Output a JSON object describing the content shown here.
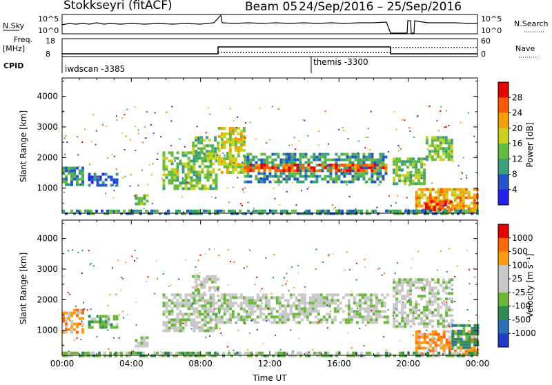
{
  "header": {
    "station": "Stokkseyri (fitACF)",
    "beam": "Beam 05",
    "dates": "24/Sep/2016 – 25/Sep/2016"
  },
  "summary": {
    "nsky_label": "N.Sky",
    "nsearch_label": "N.Search",
    "noise_ticks": [
      "10^5",
      "10^0"
    ],
    "freq_label": "Freq.",
    "freq_unit": "[MHz]",
    "freq_ticks": [
      "18",
      "8"
    ],
    "nave_label": "Nave",
    "nave_ticks": [
      "60",
      "0"
    ],
    "cpid_label": "CPID",
    "cpid_entries": [
      {
        "name": "iwdscan -3385",
        "start_hour": 0
      },
      {
        "name": "themis -3300",
        "start_hour": 14.4
      }
    ]
  },
  "chart_data": [
    {
      "type": "heatmap",
      "panel": "power",
      "ylabel": "Slant Range [km]",
      "xlim_hours": [
        0,
        24
      ],
      "ylim_km": [
        180,
        4600
      ],
      "y_ticks": [
        1000,
        2000,
        3000,
        4000
      ],
      "colorbar_label": "Power [dB]",
      "colorbar_ticks": [
        "28",
        "24",
        "20",
        "16",
        "12",
        "8",
        "4"
      ],
      "colors": [
        "#2222ee",
        "#2255cc",
        "#3aa07a",
        "#64bb3c",
        "#c8d21e",
        "#f5a000",
        "#ff5a00",
        "#e80000"
      ],
      "echo_bands": [
        {
          "t0": 0.0,
          "t1": 1.2,
          "r0": 1100,
          "r1": 1700,
          "level": 2
        },
        {
          "t0": 1.5,
          "t1": 3.2,
          "r0": 1050,
          "r1": 1500,
          "level": 1
        },
        {
          "t0": 4.2,
          "t1": 5.0,
          "r0": 500,
          "r1": 800,
          "level": 3
        },
        {
          "t0": 5.8,
          "t1": 9.0,
          "r0": 1000,
          "r1": 2200,
          "level": 3
        },
        {
          "t0": 7.5,
          "t1": 9.0,
          "r0": 2100,
          "r1": 2700,
          "level": 3
        },
        {
          "t0": 9.0,
          "t1": 10.5,
          "r0": 1500,
          "r1": 3000,
          "level": 4
        },
        {
          "t0": 10.5,
          "t1": 18.8,
          "r0": 1200,
          "r1": 2150,
          "level": 2
        },
        {
          "t0": 10.5,
          "t1": 18.8,
          "r0": 1550,
          "r1": 1800,
          "level": 6
        },
        {
          "t0": 19.1,
          "t1": 21.0,
          "r0": 1100,
          "r1": 2000,
          "level": 3
        },
        {
          "t0": 21.0,
          "t1": 22.5,
          "r0": 1900,
          "r1": 2700,
          "level": 3
        },
        {
          "t0": 20.4,
          "t1": 24.0,
          "r0": 200,
          "r1": 1000,
          "level": 5
        },
        {
          "t0": 20.8,
          "t1": 22.5,
          "r0": 300,
          "r1": 600,
          "level": 7
        },
        {
          "t0": 0.0,
          "t1": 24.0,
          "r0": 180,
          "r1": 300,
          "level": 2
        }
      ]
    },
    {
      "type": "heatmap",
      "panel": "velocity",
      "ylabel": "Slant Range [km]",
      "xlabel": "Time UT",
      "xlim_hours": [
        0,
        24
      ],
      "ylim_km": [
        180,
        4600
      ],
      "y_ticks": [
        1000,
        2000,
        3000,
        4000
      ],
      "x_ticks": [
        "00:00",
        "04:00",
        "08:00",
        "12:00",
        "16:00",
        "20:00",
        "00:00"
      ],
      "colorbar_label": "Velocity [m s⁻¹]",
      "colorbar_ticks": [
        "1000",
        "500",
        "100",
        "25",
        "-25",
        "-100",
        "-500",
        "-1000"
      ],
      "colors": [
        "#1e3cc8",
        "#2a70b8",
        "#2e8e50",
        "#6ab83a",
        "#c8c8c8",
        "#c8c8c8",
        "#ff9a10",
        "#ff6a00",
        "#e80000"
      ],
      "echo_bands": [
        {
          "t0": 0.0,
          "t1": 1.2,
          "r0": 900,
          "r1": 1700,
          "level": 6
        },
        {
          "t0": 1.5,
          "t1": 3.2,
          "r0": 1050,
          "r1": 1500,
          "level": 3
        },
        {
          "t0": 4.2,
          "t1": 5.0,
          "r0": 500,
          "r1": 800,
          "level": 4
        },
        {
          "t0": 5.8,
          "t1": 9.0,
          "r0": 1000,
          "r1": 2200,
          "level": 4
        },
        {
          "t0": 7.5,
          "t1": 9.0,
          "r0": 2100,
          "r1": 2800,
          "level": 4
        },
        {
          "t0": 9.0,
          "t1": 18.8,
          "r0": 1200,
          "r1": 2200,
          "level": 4
        },
        {
          "t0": 19.1,
          "t1": 22.5,
          "r0": 1100,
          "r1": 2700,
          "level": 4
        },
        {
          "t0": 20.4,
          "t1": 24.0,
          "r0": 200,
          "r1": 1000,
          "level": 6
        },
        {
          "t0": 22.5,
          "t1": 24.0,
          "r0": 400,
          "r1": 1200,
          "level": 2
        },
        {
          "t0": 0.0,
          "t1": 24.0,
          "r0": 180,
          "r1": 300,
          "level": 3
        }
      ]
    }
  ]
}
